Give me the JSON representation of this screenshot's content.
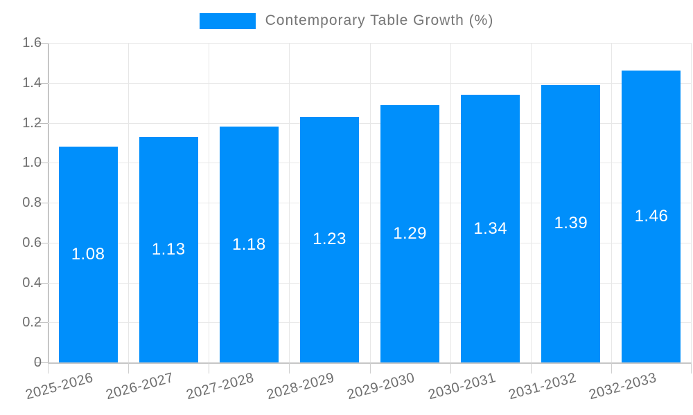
{
  "legend": {
    "label": "Contemporary Table Growth (%)"
  },
  "chart_data": {
    "type": "bar",
    "title": "Contemporary Table Growth (%)",
    "series": [
      {
        "name": "Contemporary Table Growth (%)",
        "values": [
          1.08,
          1.13,
          1.18,
          1.23,
          1.29,
          1.34,
          1.39,
          1.46
        ]
      }
    ],
    "categories": [
      "2025-2026",
      "2026-2027",
      "2027-2028",
      "2028-2029",
      "2029-2030",
      "2030-2031",
      "2031-2032",
      "2032-2033"
    ],
    "data_labels": [
      "1.08",
      "1.13",
      "1.18",
      "1.23",
      "1.29",
      "1.34",
      "1.39",
      "1.46"
    ],
    "xlabel": "",
    "ylabel": "",
    "ylim": [
      0,
      1.6
    ],
    "ytick_labels": [
      "0",
      "0.2",
      "0.4",
      "0.6",
      "0.8",
      "1.0",
      "1.2",
      "1.4",
      "1.6"
    ],
    "grid": true,
    "legend_position": "top-center",
    "bar_color": "#008FFB",
    "data_label_color": "#FFFFFF",
    "axis_label_color": "#6E6E6E",
    "legend_text_color": "#757575",
    "gridline_color": "#E7E7E7"
  }
}
